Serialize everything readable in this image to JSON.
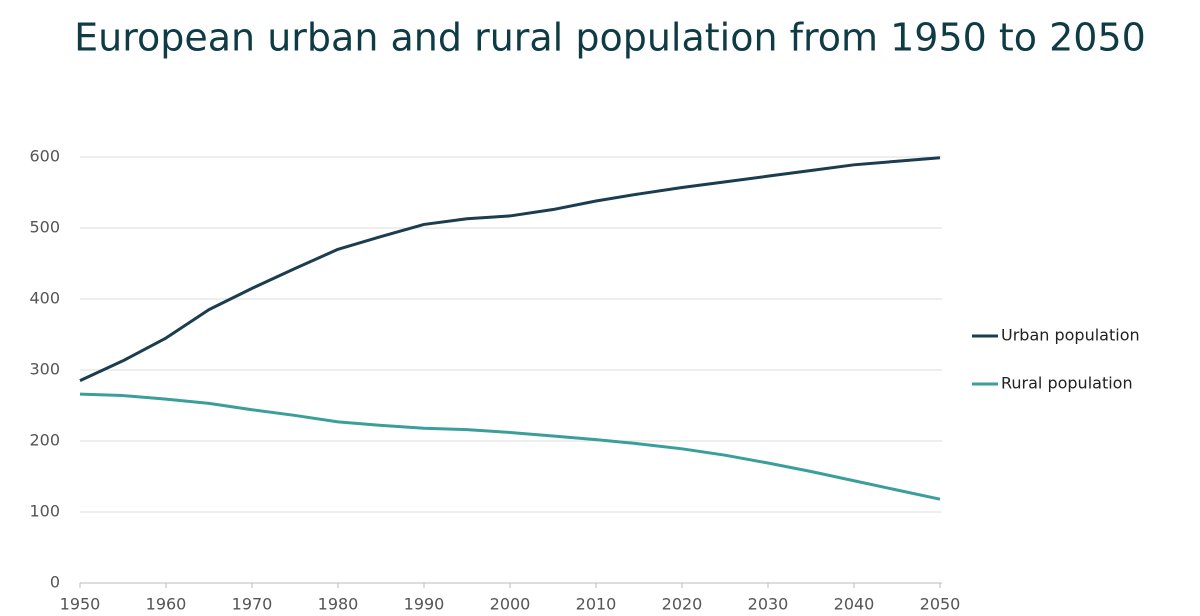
{
  "chart_data": {
    "type": "line",
    "title": "European urban and rural population from 1950 to 2050",
    "x": [
      1950,
      1955,
      1960,
      1965,
      1970,
      1975,
      1980,
      1985,
      1990,
      1995,
      2000,
      2005,
      2010,
      2015,
      2020,
      2025,
      2030,
      2035,
      2040,
      2045,
      2050
    ],
    "series": [
      {
        "name": "Urban population",
        "color": "#1b3d4f",
        "values": [
          285,
          313,
          345,
          385,
          415,
          443,
          470,
          488,
          505,
          513,
          517,
          526,
          538,
          548,
          557,
          565,
          573,
          581,
          589,
          594,
          599
        ]
      },
      {
        "name": "Rural population",
        "color": "#3a9e9a",
        "values": [
          266,
          264,
          259,
          253,
          244,
          236,
          227,
          222,
          218,
          216,
          212,
          207,
          202,
          196,
          189,
          180,
          169,
          157,
          144,
          131,
          118
        ]
      }
    ],
    "xlim": [
      1950,
      2050
    ],
    "xticks": [
      1950,
      1960,
      1970,
      1980,
      1990,
      2000,
      2010,
      2020,
      2030,
      2040,
      2050
    ],
    "ylim": [
      0,
      600
    ],
    "yticks": [
      0,
      100,
      200,
      300,
      400,
      500,
      600
    ],
    "grid": true,
    "legend": "right"
  }
}
